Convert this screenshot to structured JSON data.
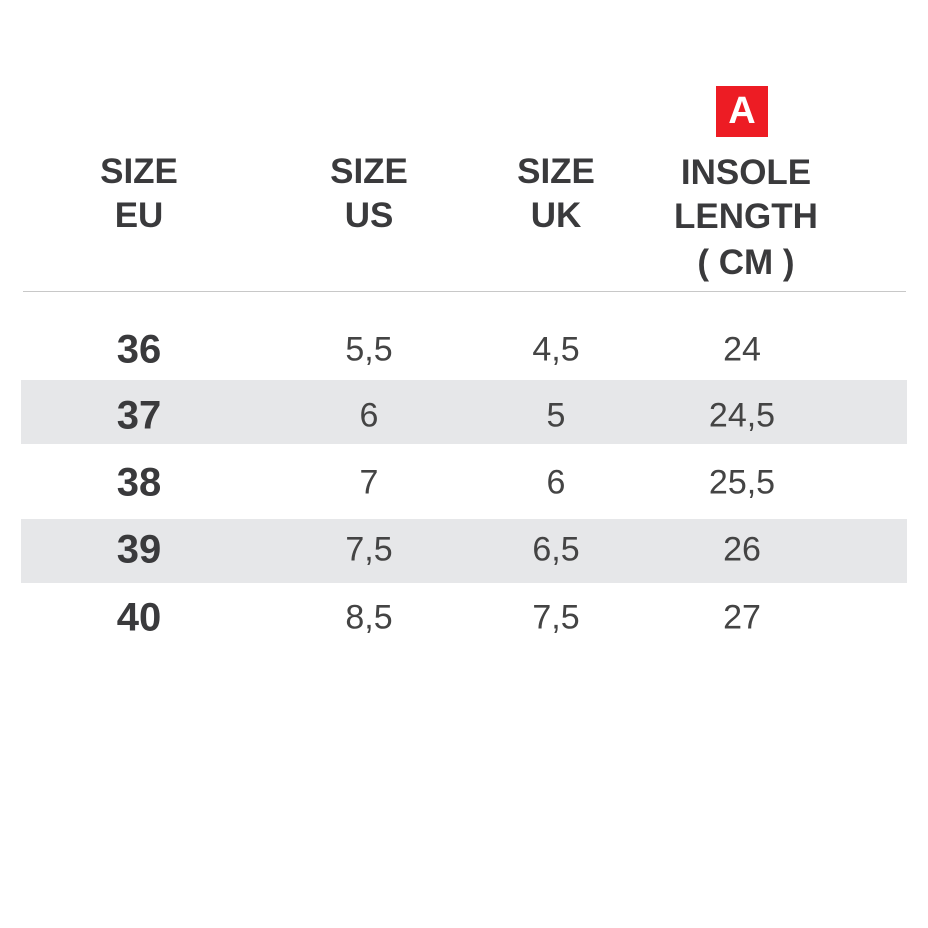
{
  "header": {
    "columns": [
      {
        "lines": [
          "SIZE",
          "EU"
        ]
      },
      {
        "lines": [
          "SIZE",
          "US"
        ]
      },
      {
        "lines": [
          "SIZE",
          "UK"
        ]
      },
      {
        "lines": [
          "INSOLE",
          "LENGTH",
          "( CM )"
        ],
        "badge": "A"
      }
    ],
    "badge_color": "#ed1c24"
  },
  "rows": [
    {
      "eu": "36",
      "us": "5,5",
      "uk": "4,5",
      "cm": "24"
    },
    {
      "eu": "37",
      "us": "6",
      "uk": "5",
      "cm": "24,5"
    },
    {
      "eu": "38",
      "us": "7",
      "uk": "6",
      "cm": "25,5"
    },
    {
      "eu": "39",
      "us": "7,5",
      "uk": "6,5",
      "cm": "26"
    },
    {
      "eu": "40",
      "us": "8,5",
      "uk": "7,5",
      "cm": "27"
    }
  ],
  "stripe_color": "#e6e7e9"
}
